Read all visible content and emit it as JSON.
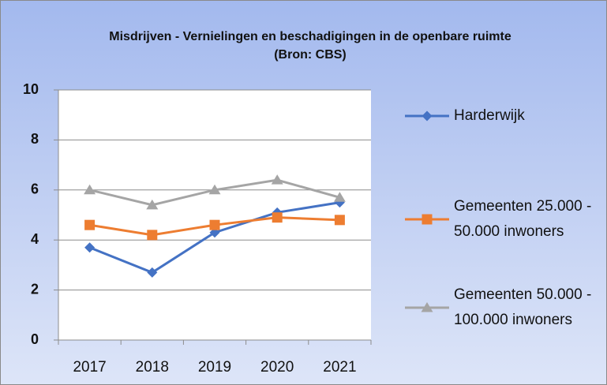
{
  "chart_data": {
    "type": "line",
    "title": "Misdrijven - Vernielingen en beschadigingen in de openbare ruimte (Bron: CBS)",
    "categories": [
      "2017",
      "2018",
      "2019",
      "2020",
      "2021"
    ],
    "series": [
      {
        "name": "Harderwijk",
        "color": "#4472c4",
        "marker": "diamond",
        "values": [
          3.7,
          2.7,
          4.3,
          5.1,
          5.5
        ]
      },
      {
        "name": "Gemeenten 25.000 - 50.000 inwoners",
        "color": "#ed7d31",
        "marker": "square",
        "values": [
          4.6,
          4.2,
          4.6,
          4.9,
          4.8
        ]
      },
      {
        "name": "Gemeenten 50.000 - 100.000 inwoners",
        "color": "#a5a5a5",
        "marker": "triangle",
        "values": [
          6.0,
          5.4,
          6.0,
          6.4,
          5.7
        ]
      }
    ],
    "ylim": [
      0,
      10
    ],
    "yticks": [
      0,
      2,
      4,
      6,
      8,
      10
    ],
    "grid": true,
    "legend": "right"
  }
}
